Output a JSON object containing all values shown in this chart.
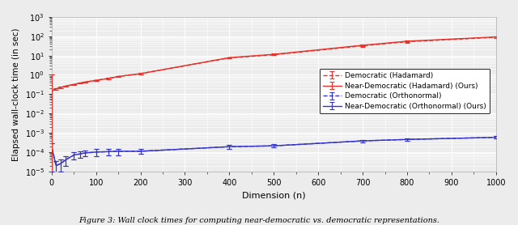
{
  "xlabel": "Dimension (n)",
  "ylabel": "Elapsed wall-clock time (in sec)",
  "caption": "Figure 3: Wall clock times for computing near-democratic vs. democratic representations.",
  "xlim": [
    0,
    1000
  ],
  "ylim_log": [
    -5,
    3
  ],
  "x_sparse": [
    1,
    10,
    20,
    32,
    50,
    64,
    75,
    100,
    128,
    150,
    200,
    400,
    500,
    700,
    800,
    1000
  ],
  "had_dem_y": [
    0.15,
    0.19,
    0.22,
    0.26,
    0.32,
    0.37,
    0.42,
    0.52,
    0.65,
    0.82,
    1.15,
    7.5,
    11.0,
    32.0,
    52.0,
    88.0
  ],
  "had_dem_yerr": [
    0.9,
    0.02,
    0.02,
    0.02,
    0.02,
    0.02,
    0.02,
    0.03,
    0.04,
    0.05,
    0.08,
    0.4,
    0.8,
    3.5,
    6.0,
    8.0
  ],
  "had_nd_y": [
    0.15,
    0.19,
    0.22,
    0.26,
    0.32,
    0.37,
    0.42,
    0.52,
    0.65,
    0.82,
    1.15,
    7.8,
    11.5,
    34.0,
    55.0,
    92.0
  ],
  "had_nd_yerr": [
    0.9,
    0.02,
    0.02,
    0.02,
    0.02,
    0.02,
    0.02,
    0.03,
    0.04,
    0.05,
    0.08,
    0.4,
    0.8,
    3.5,
    6.0,
    8.0
  ],
  "orth_dem_y": [
    0.00015,
    2e-05,
    2.5e-05,
    4e-05,
    7e-05,
    8e-05,
    9e-05,
    0.0001,
    0.000105,
    0.00011,
    0.00011,
    0.00019,
    0.00021,
    0.00038,
    0.00045,
    0.00058
  ],
  "orth_dem_yerr": [
    0.00014,
    1.5e-05,
    1.5e-05,
    2e-05,
    3e-05,
    3e-05,
    3e-05,
    4e-05,
    4e-05,
    4e-05,
    3e-05,
    4e-05,
    4e-05,
    6e-05,
    8e-05,
    8e-05
  ],
  "orth_nd_y": [
    0.00015,
    2e-05,
    2.5e-05,
    4e-05,
    7e-05,
    8e-05,
    9e-05,
    0.0001,
    0.000105,
    0.00011,
    0.00011,
    0.00019,
    0.00021,
    0.00038,
    0.00045,
    0.00058
  ],
  "orth_nd_yerr": [
    0.00014,
    1.5e-05,
    1.5e-05,
    2e-05,
    3e-05,
    3e-05,
    3e-05,
    4e-05,
    4e-05,
    4e-05,
    3e-05,
    4e-05,
    4e-05,
    6e-05,
    8e-05,
    8e-05
  ],
  "color_red": "#e8312a",
  "color_blue": "#3535cc",
  "bg_color": "#ececec",
  "grid_major_color": "#ffffff",
  "grid_minor_color": "#ffffff",
  "xticks": [
    0,
    100,
    200,
    300,
    400,
    500,
    600,
    700,
    800,
    900,
    1000
  ],
  "legend_labels": [
    "Democratic (Hadamard)",
    "Near-Democratic (Hadamard) (Ours)",
    "Democratic (Orthonormal)",
    "Near-Democratic (Orthonormal) (Ours)"
  ]
}
